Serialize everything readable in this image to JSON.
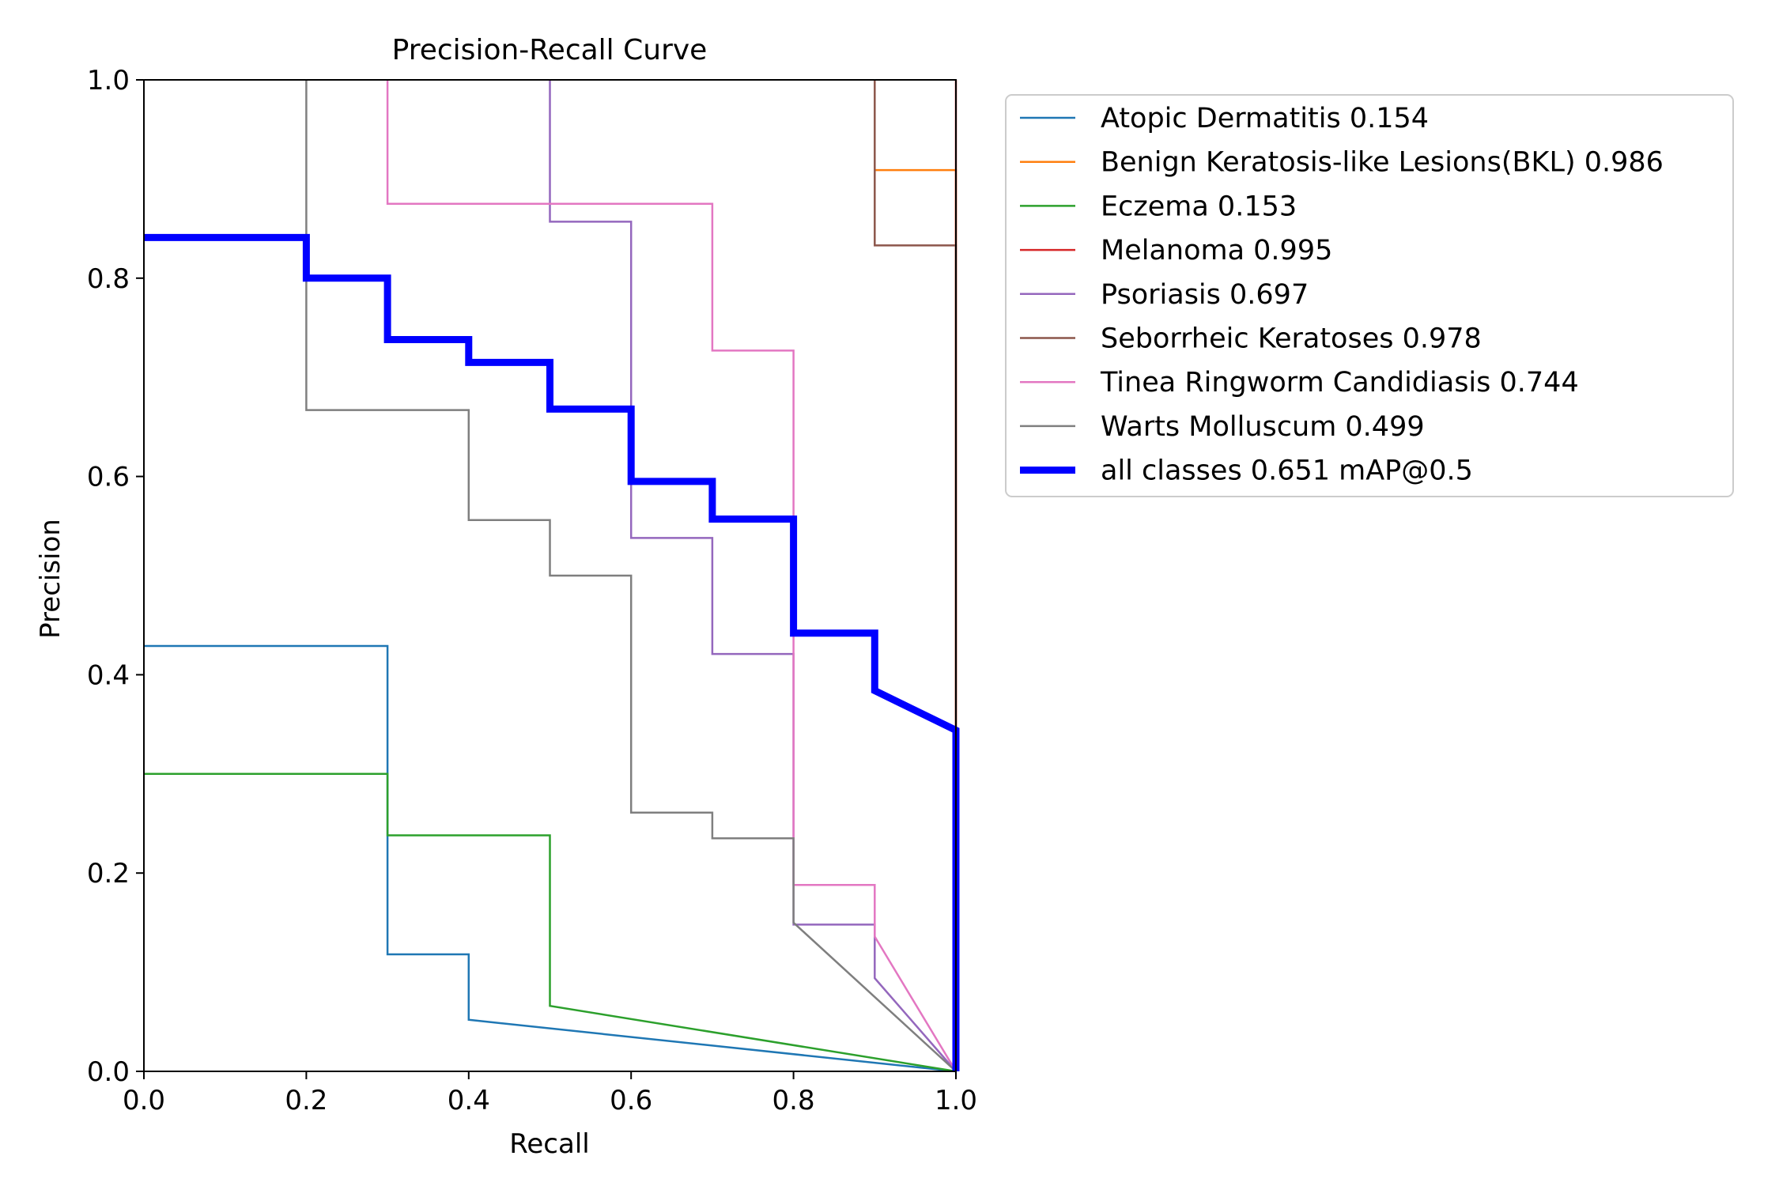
{
  "chart_data": {
    "type": "line",
    "title": "Precision-Recall Curve",
    "xlabel": "Recall",
    "ylabel": "Precision",
    "xlim": [
      0,
      1
    ],
    "ylim": [
      0,
      1
    ],
    "xticks": [
      "0.0",
      "0.2",
      "0.4",
      "0.6",
      "0.8",
      "1.0"
    ],
    "yticks": [
      "0.0",
      "0.2",
      "0.4",
      "0.6",
      "0.8",
      "1.0"
    ],
    "grid": false,
    "legend_position": "outside-top-right",
    "series": [
      {
        "name": "Atopic Dermatitis 0.154",
        "color": "#1f77b4",
        "points": [
          [
            0,
            0.429
          ],
          [
            0.3,
            0.429
          ],
          [
            0.3,
            0.118
          ],
          [
            0.4,
            0.118
          ],
          [
            0.4,
            0.052
          ],
          [
            1.0,
            0.0
          ]
        ]
      },
      {
        "name": "Benign Keratosis-like Lesions(BKL) 0.986",
        "color": "#ff7f0e",
        "points": [
          [
            0.9,
            0.909
          ],
          [
            1.0,
            0.909
          ],
          [
            1.0,
            0.0
          ]
        ]
      },
      {
        "name": "Eczema 0.153",
        "color": "#2ca02c",
        "points": [
          [
            0,
            0.3
          ],
          [
            0.3,
            0.3
          ],
          [
            0.3,
            0.238
          ],
          [
            0.5,
            0.238
          ],
          [
            0.5,
            0.066
          ],
          [
            1.0,
            0.0
          ]
        ]
      },
      {
        "name": "Melanoma 0.995",
        "color": "#d62728",
        "points": [
          [
            1.0,
            1.0
          ],
          [
            1.0,
            0.0
          ]
        ]
      },
      {
        "name": "Psoriasis 0.697",
        "color": "#9467bd",
        "points": [
          [
            0.5,
            1.0
          ],
          [
            0.5,
            0.857
          ],
          [
            0.6,
            0.857
          ],
          [
            0.6,
            0.538
          ],
          [
            0.7,
            0.538
          ],
          [
            0.7,
            0.421
          ],
          [
            0.8,
            0.421
          ],
          [
            0.8,
            0.148
          ],
          [
            0.9,
            0.148
          ],
          [
            0.9,
            0.094
          ],
          [
            1.0,
            0.0
          ]
        ]
      },
      {
        "name": "Seborrheic Keratoses 0.978",
        "color": "#8c564b",
        "points": [
          [
            0.9,
            1.0
          ],
          [
            0.9,
            0.833
          ],
          [
            1.0,
            0.833
          ],
          [
            1.0,
            0.0
          ]
        ]
      },
      {
        "name": "Tinea Ringworm Candidiasis 0.744",
        "color": "#e377c2",
        "points": [
          [
            0.3,
            1.0
          ],
          [
            0.3,
            0.875
          ],
          [
            0.7,
            0.875
          ],
          [
            0.7,
            0.727
          ],
          [
            0.8,
            0.727
          ],
          [
            0.8,
            0.188
          ],
          [
            0.9,
            0.188
          ],
          [
            0.9,
            0.136
          ],
          [
            1.0,
            0.0
          ]
        ]
      },
      {
        "name": "Warts Molluscum 0.499",
        "color": "#7f7f7f",
        "points": [
          [
            0.2,
            1.0
          ],
          [
            0.2,
            0.667
          ],
          [
            0.4,
            0.667
          ],
          [
            0.4,
            0.556
          ],
          [
            0.5,
            0.556
          ],
          [
            0.5,
            0.5
          ],
          [
            0.6,
            0.5
          ],
          [
            0.6,
            0.261
          ],
          [
            0.7,
            0.261
          ],
          [
            0.7,
            0.235
          ],
          [
            0.8,
            0.235
          ],
          [
            0.8,
            0.15
          ],
          [
            1.0,
            0.0
          ]
        ]
      },
      {
        "name": "all classes 0.651 mAP@0.5",
        "color": "#0000ff",
        "bold": true,
        "points": [
          [
            0,
            0.841
          ],
          [
            0.2,
            0.841
          ],
          [
            0.2,
            0.8
          ],
          [
            0.3,
            0.8
          ],
          [
            0.3,
            0.738
          ],
          [
            0.4,
            0.738
          ],
          [
            0.4,
            0.715
          ],
          [
            0.5,
            0.715
          ],
          [
            0.5,
            0.668
          ],
          [
            0.6,
            0.668
          ],
          [
            0.6,
            0.595
          ],
          [
            0.7,
            0.595
          ],
          [
            0.7,
            0.557
          ],
          [
            0.8,
            0.557
          ],
          [
            0.8,
            0.442
          ],
          [
            0.9,
            0.442
          ],
          [
            0.9,
            0.384
          ],
          [
            1.0,
            0.344
          ],
          [
            1.0,
            0.0
          ]
        ]
      }
    ]
  }
}
